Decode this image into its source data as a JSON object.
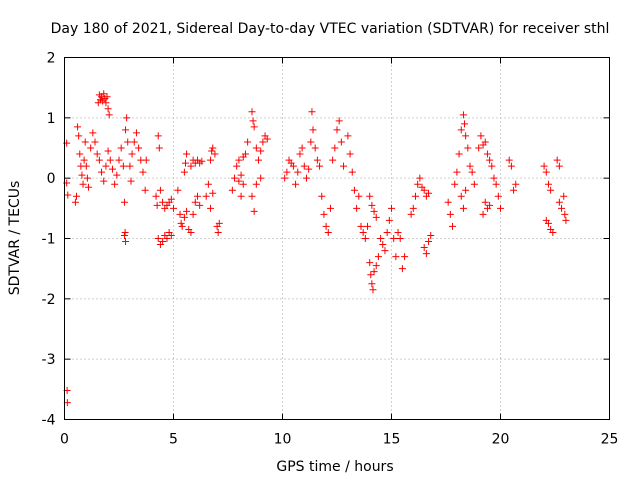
{
  "chart_data": {
    "type": "scatter",
    "title": "Day 180 of 2021, Sidereal Day-to-day VTEC variation (SDTVAR) for receiver sthl",
    "xlabel": "GPS time / hours",
    "ylabel": "SDTVAR / TECUs",
    "xlim": [
      0,
      25
    ],
    "ylim": [
      -4,
      2
    ],
    "xticks": [
      0,
      5,
      10,
      15,
      20,
      25
    ],
    "yticks": [
      -4,
      -3,
      -2,
      -1,
      0,
      1,
      2
    ],
    "grid": true,
    "marker": "+",
    "color": "#ff0000",
    "series": [
      {
        "name": "sthl",
        "points": [
          [
            0.1,
            0.58
          ],
          [
            0.1,
            -0.08
          ],
          [
            0.15,
            -0.28
          ],
          [
            0.12,
            -3.52
          ],
          [
            0.13,
            -3.72
          ],
          [
            0.5,
            -0.4
          ],
          [
            0.55,
            -0.3
          ],
          [
            0.6,
            0.85
          ],
          [
            0.65,
            0.7
          ],
          [
            0.7,
            0.4
          ],
          [
            0.75,
            0.2
          ],
          [
            0.8,
            0.05
          ],
          [
            0.85,
            -0.1
          ],
          [
            0.9,
            0.3
          ],
          [
            0.95,
            0.6
          ],
          [
            1.0,
            0.2
          ],
          [
            1.05,
            0.0
          ],
          [
            1.1,
            -0.15
          ],
          [
            1.2,
            0.5
          ],
          [
            1.3,
            0.75
          ],
          [
            1.4,
            0.6
          ],
          [
            1.5,
            0.4
          ],
          [
            1.55,
            1.25
          ],
          [
            1.6,
            1.38
          ],
          [
            1.65,
            1.3
          ],
          [
            1.7,
            1.35
          ],
          [
            1.75,
            1.28
          ],
          [
            1.8,
            1.4
          ],
          [
            1.85,
            1.32
          ],
          [
            1.9,
            1.25
          ],
          [
            1.95,
            1.35
          ],
          [
            2.0,
            1.15
          ],
          [
            2.05,
            1.05
          ],
          [
            1.6,
            0.3
          ],
          [
            1.7,
            0.1
          ],
          [
            1.8,
            -0.05
          ],
          [
            1.9,
            0.2
          ],
          [
            2.0,
            0.45
          ],
          [
            2.1,
            0.3
          ],
          [
            2.2,
            0.15
          ],
          [
            2.3,
            -0.1
          ],
          [
            2.4,
            0.05
          ],
          [
            2.5,
            0.3
          ],
          [
            2.6,
            0.5
          ],
          [
            2.7,
            0.2
          ],
          [
            2.75,
            -0.4
          ],
          [
            2.8,
            0.8
          ],
          [
            2.85,
            1.0
          ],
          [
            2.9,
            0.6
          ],
          [
            2.75,
            -0.95
          ],
          [
            2.8,
            -1.05
          ],
          [
            2.78,
            -0.9
          ],
          [
            3.0,
            0.2
          ],
          [
            3.05,
            -0.05
          ],
          [
            3.1,
            0.4
          ],
          [
            3.2,
            0.6
          ],
          [
            3.3,
            0.75
          ],
          [
            3.4,
            0.5
          ],
          [
            3.5,
            0.3
          ],
          [
            3.6,
            0.1
          ],
          [
            3.7,
            -0.2
          ],
          [
            3.75,
            0.3
          ],
          [
            4.2,
            -0.3
          ],
          [
            4.25,
            -0.45
          ],
          [
            4.3,
            0.7
          ],
          [
            4.35,
            0.5
          ],
          [
            4.4,
            -0.2
          ],
          [
            4.3,
            -1.0
          ],
          [
            4.4,
            -1.1
          ],
          [
            4.5,
            -1.05
          ],
          [
            4.6,
            -0.95
          ],
          [
            4.7,
            -1.0
          ],
          [
            4.8,
            -0.9
          ],
          [
            4.9,
            -0.95
          ],
          [
            4.5,
            -0.4
          ],
          [
            4.6,
            -0.5
          ],
          [
            4.7,
            -0.45
          ],
          [
            4.8,
            -0.4
          ],
          [
            4.9,
            -0.35
          ],
          [
            5.0,
            -0.5
          ],
          [
            5.2,
            -0.2
          ],
          [
            5.3,
            -0.6
          ],
          [
            5.35,
            -0.75
          ],
          [
            5.4,
            -0.8
          ],
          [
            5.5,
            -0.65
          ],
          [
            5.6,
            -0.55
          ],
          [
            5.5,
            0.1
          ],
          [
            5.55,
            0.25
          ],
          [
            5.6,
            0.4
          ],
          [
            5.7,
            -0.85
          ],
          [
            5.8,
            -0.9
          ],
          [
            5.9,
            -0.6
          ],
          [
            6.0,
            -0.4
          ],
          [
            6.1,
            -0.3
          ],
          [
            6.2,
            -0.45
          ],
          [
            5.8,
            0.2
          ],
          [
            5.9,
            0.3
          ],
          [
            6.0,
            0.25
          ],
          [
            6.1,
            0.3
          ],
          [
            6.2,
            0.25
          ],
          [
            6.3,
            0.28
          ],
          [
            6.5,
            -0.3
          ],
          [
            6.6,
            -0.1
          ],
          [
            6.7,
            0.3
          ],
          [
            6.75,
            0.45
          ],
          [
            6.8,
            0.5
          ],
          [
            6.9,
            0.4
          ],
          [
            6.7,
            -0.5
          ],
          [
            6.8,
            -0.25
          ],
          [
            7.0,
            -0.8
          ],
          [
            7.05,
            -0.9
          ],
          [
            7.1,
            -0.75
          ],
          [
            7.7,
            -0.2
          ],
          [
            7.8,
            0.0
          ],
          [
            7.9,
            0.2
          ],
          [
            8.0,
            0.3
          ],
          [
            8.1,
            -0.3
          ],
          [
            8.2,
            -0.1
          ],
          [
            8.3,
            0.4
          ],
          [
            8.4,
            0.6
          ],
          [
            8.0,
            -0.05
          ],
          [
            8.1,
            0.05
          ],
          [
            8.2,
            0.35
          ],
          [
            8.6,
            1.1
          ],
          [
            8.65,
            0.95
          ],
          [
            8.7,
            0.85
          ],
          [
            8.8,
            0.5
          ],
          [
            8.9,
            0.3
          ],
          [
            9.0,
            0.45
          ],
          [
            9.1,
            0.6
          ],
          [
            9.2,
            0.7
          ],
          [
            9.3,
            0.65
          ],
          [
            8.6,
            -0.3
          ],
          [
            8.7,
            -0.55
          ],
          [
            8.8,
            -0.1
          ],
          [
            9.0,
            0.0
          ],
          [
            10.1,
            0.0
          ],
          [
            10.2,
            0.1
          ],
          [
            10.3,
            0.3
          ],
          [
            10.4,
            0.25
          ],
          [
            10.5,
            0.2
          ],
          [
            10.6,
            -0.1
          ],
          [
            10.7,
            0.1
          ],
          [
            10.8,
            0.4
          ],
          [
            10.9,
            0.5
          ],
          [
            11.0,
            0.2
          ],
          [
            11.1,
            0.0
          ],
          [
            11.2,
            0.15
          ],
          [
            11.3,
            0.6
          ],
          [
            11.35,
            1.1
          ],
          [
            11.4,
            0.8
          ],
          [
            11.5,
            0.5
          ],
          [
            11.6,
            0.3
          ],
          [
            11.7,
            0.2
          ],
          [
            11.8,
            -0.3
          ],
          [
            11.9,
            -0.6
          ],
          [
            12.0,
            -0.8
          ],
          [
            12.1,
            -0.9
          ],
          [
            12.2,
            -0.5
          ],
          [
            12.3,
            0.3
          ],
          [
            12.4,
            0.5
          ],
          [
            12.5,
            0.8
          ],
          [
            12.6,
            0.95
          ],
          [
            12.7,
            0.6
          ],
          [
            12.8,
            0.2
          ],
          [
            13.0,
            0.7
          ],
          [
            13.1,
            0.4
          ],
          [
            13.2,
            0.1
          ],
          [
            13.3,
            -0.2
          ],
          [
            13.4,
            -0.5
          ],
          [
            13.5,
            -0.3
          ],
          [
            13.6,
            -0.8
          ],
          [
            13.7,
            -0.9
          ],
          [
            13.8,
            -1.0
          ],
          [
            13.9,
            -0.8
          ],
          [
            14.0,
            -1.4
          ],
          [
            14.05,
            -1.6
          ],
          [
            14.1,
            -1.75
          ],
          [
            14.15,
            -1.85
          ],
          [
            14.2,
            -1.55
          ],
          [
            14.3,
            -1.45
          ],
          [
            14.4,
            -1.3
          ],
          [
            14.0,
            -0.3
          ],
          [
            14.1,
            -0.45
          ],
          [
            14.2,
            -0.55
          ],
          [
            14.3,
            -0.65
          ],
          [
            14.5,
            -1.0
          ],
          [
            14.6,
            -1.1
          ],
          [
            14.7,
            -1.2
          ],
          [
            14.8,
            -0.9
          ],
          [
            14.9,
            -0.7
          ],
          [
            15.0,
            -0.5
          ],
          [
            15.1,
            -1.0
          ],
          [
            15.2,
            -1.3
          ],
          [
            15.3,
            -0.9
          ],
          [
            15.4,
            -1.0
          ],
          [
            15.5,
            -1.5
          ],
          [
            15.6,
            -1.3
          ],
          [
            15.9,
            -0.6
          ],
          [
            16.0,
            -0.5
          ],
          [
            16.1,
            -0.3
          ],
          [
            16.2,
            -0.1
          ],
          [
            16.3,
            0.0
          ],
          [
            16.5,
            -1.15
          ],
          [
            16.6,
            -1.25
          ],
          [
            16.7,
            -1.05
          ],
          [
            16.8,
            -0.95
          ],
          [
            16.4,
            -0.15
          ],
          [
            16.5,
            -0.2
          ],
          [
            16.6,
            -0.3
          ],
          [
            16.7,
            -0.25
          ],
          [
            17.6,
            -0.4
          ],
          [
            17.7,
            -0.6
          ],
          [
            17.8,
            -0.8
          ],
          [
            17.9,
            -0.1
          ],
          [
            18.0,
            0.1
          ],
          [
            18.1,
            0.4
          ],
          [
            18.2,
            0.8
          ],
          [
            18.3,
            1.05
          ],
          [
            18.35,
            0.9
          ],
          [
            18.4,
            0.7
          ],
          [
            18.5,
            0.5
          ],
          [
            18.6,
            0.2
          ],
          [
            18.7,
            0.1
          ],
          [
            18.2,
            -0.3
          ],
          [
            18.3,
            -0.5
          ],
          [
            18.4,
            -0.2
          ],
          [
            18.8,
            -0.1
          ],
          [
            19.0,
            0.5
          ],
          [
            19.1,
            0.7
          ],
          [
            19.2,
            0.55
          ],
          [
            19.3,
            0.6
          ],
          [
            19.4,
            0.4
          ],
          [
            19.5,
            0.3
          ],
          [
            19.6,
            0.2
          ],
          [
            19.2,
            -0.6
          ],
          [
            19.3,
            -0.4
          ],
          [
            19.4,
            -0.5
          ],
          [
            19.5,
            -0.45
          ],
          [
            19.7,
            0.0
          ],
          [
            19.8,
            -0.1
          ],
          [
            19.9,
            -0.3
          ],
          [
            20.0,
            -0.5
          ],
          [
            20.4,
            0.3
          ],
          [
            20.5,
            0.2
          ],
          [
            20.6,
            -0.2
          ],
          [
            20.7,
            -0.1
          ],
          [
            22.0,
            0.2
          ],
          [
            22.1,
            0.1
          ],
          [
            22.2,
            -0.1
          ],
          [
            22.3,
            -0.2
          ],
          [
            22.1,
            -0.7
          ],
          [
            22.2,
            -0.75
          ],
          [
            22.3,
            -0.85
          ],
          [
            22.4,
            -0.9
          ],
          [
            22.6,
            0.3
          ],
          [
            22.7,
            0.2
          ],
          [
            22.7,
            -0.4
          ],
          [
            22.8,
            -0.5
          ],
          [
            22.9,
            -0.3
          ],
          [
            22.95,
            -0.6
          ],
          [
            23.0,
            -0.7
          ]
        ]
      }
    ]
  }
}
